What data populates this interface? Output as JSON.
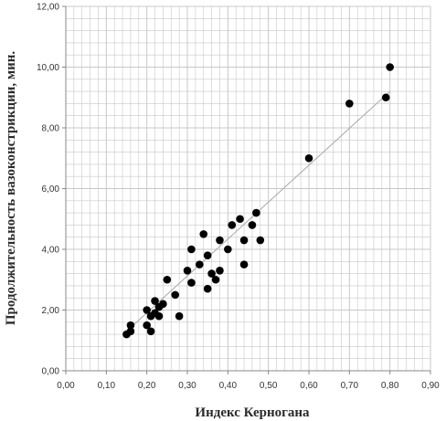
{
  "chart_data": {
    "type": "scatter",
    "title": "",
    "xlabel": "Индекс Керногана",
    "ylabel": "Продолжительность вазоконстрикции, мин.",
    "xlim": [
      0,
      0.9
    ],
    "ylim": [
      0,
      12
    ],
    "x_ticks": [
      "0,00",
      "0,10",
      "0,20",
      "0,30",
      "0,40",
      "0,50",
      "0,60",
      "0,70",
      "0,80",
      "0,90"
    ],
    "y_ticks": [
      "0,00",
      "2,00",
      "4,00",
      "6,00",
      "8,00",
      "10,00",
      "12,00"
    ],
    "grid": true,
    "colors": {
      "points": "#000000",
      "grid": "#c8c8c8",
      "trendline": "#a8a8a8",
      "axis": "#888888"
    },
    "trendline": {
      "type": "linear",
      "from": [
        0.15,
        1.3
      ],
      "to": [
        0.8,
        9.2
      ]
    },
    "series": [
      {
        "points": [
          [
            0.15,
            1.2
          ],
          [
            0.16,
            1.3
          ],
          [
            0.16,
            1.5
          ],
          [
            0.2,
            1.5
          ],
          [
            0.2,
            2.0
          ],
          [
            0.21,
            1.3
          ],
          [
            0.21,
            1.8
          ],
          [
            0.22,
            1.9
          ],
          [
            0.22,
            2.3
          ],
          [
            0.23,
            1.8
          ],
          [
            0.23,
            2.1
          ],
          [
            0.24,
            2.2
          ],
          [
            0.25,
            3.0
          ],
          [
            0.27,
            2.5
          ],
          [
            0.28,
            1.8
          ],
          [
            0.3,
            3.3
          ],
          [
            0.31,
            2.9
          ],
          [
            0.31,
            4.0
          ],
          [
            0.33,
            3.5
          ],
          [
            0.34,
            4.5
          ],
          [
            0.35,
            2.7
          ],
          [
            0.35,
            3.8
          ],
          [
            0.36,
            3.2
          ],
          [
            0.37,
            3.0
          ],
          [
            0.38,
            3.3
          ],
          [
            0.38,
            4.3
          ],
          [
            0.4,
            4.0
          ],
          [
            0.41,
            4.8
          ],
          [
            0.43,
            5.0
          ],
          [
            0.44,
            3.5
          ],
          [
            0.44,
            4.3
          ],
          [
            0.46,
            4.8
          ],
          [
            0.47,
            5.2
          ],
          [
            0.48,
            4.3
          ],
          [
            0.6,
            7.0
          ],
          [
            0.7,
            8.8
          ],
          [
            0.79,
            9.0
          ],
          [
            0.8,
            10.0
          ]
        ]
      }
    ]
  }
}
